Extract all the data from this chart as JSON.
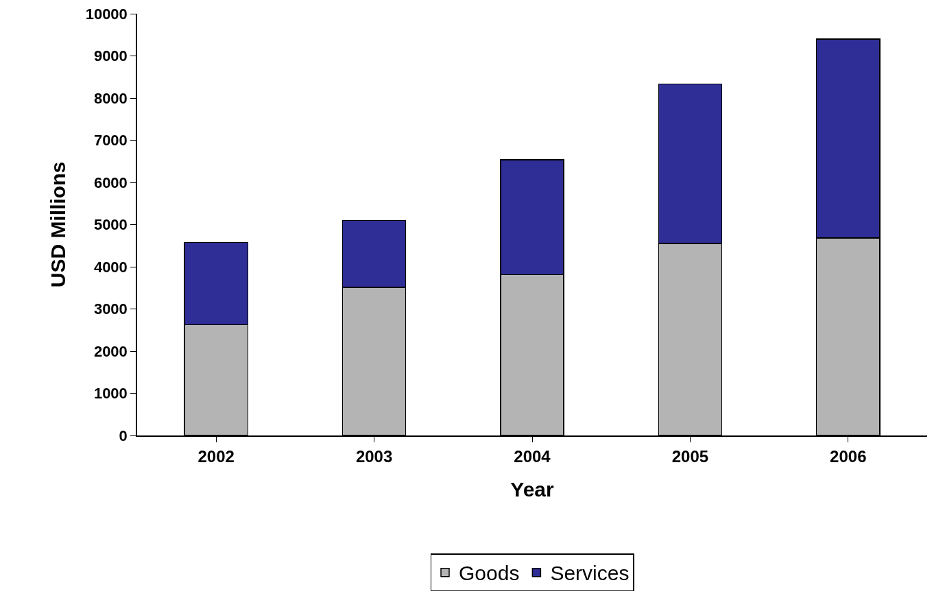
{
  "chart_data": {
    "type": "bar",
    "stacked": true,
    "xlabel": "Year",
    "ylabel": "USD Millions",
    "categories": [
      "2002",
      "2003",
      "2004",
      "2005",
      "2006"
    ],
    "series": [
      {
        "name": "Goods",
        "color": "#b4b4b4",
        "values": [
          2630,
          3510,
          3810,
          4550,
          4680
        ]
      },
      {
        "name": "Services",
        "color": "#2e2e96",
        "values": [
          1950,
          1590,
          2730,
          3780,
          4720
        ]
      }
    ],
    "ylim": [
      0,
      10000
    ],
    "yticks": [
      0,
      1000,
      2000,
      3000,
      4000,
      5000,
      6000,
      7000,
      8000,
      9000,
      10000
    ],
    "grid": false,
    "legend": "bottom"
  }
}
